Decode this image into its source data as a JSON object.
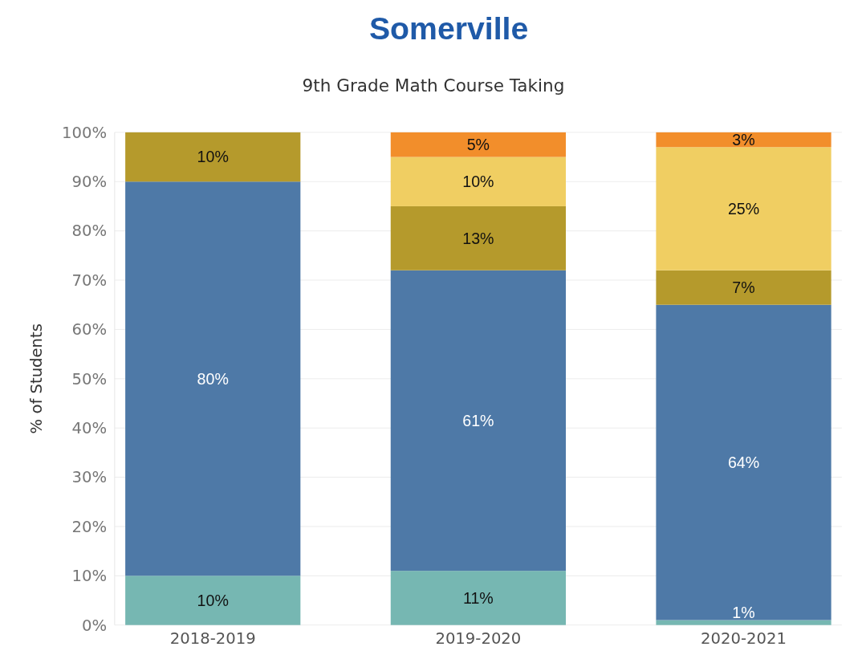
{
  "chart_data": {
    "type": "bar",
    "title": "Somerville",
    "subtitle": "9th Grade Math Course Taking",
    "ylabel": "% of Students",
    "categories": [
      "2018-2019",
      "2019-2020",
      "2020-2021"
    ],
    "stacked": true,
    "grid": "y",
    "ylim": [
      0,
      100
    ],
    "yticks": [
      {
        "value": 0,
        "label": "0%"
      },
      {
        "value": 10,
        "label": "10%"
      },
      {
        "value": 20,
        "label": "20%"
      },
      {
        "value": 30,
        "label": "30%"
      },
      {
        "value": 40,
        "label": "40%"
      },
      {
        "value": 50,
        "label": "50%"
      },
      {
        "value": 60,
        "label": "60%"
      },
      {
        "value": 70,
        "label": "70%"
      },
      {
        "value": 80,
        "label": "80%"
      },
      {
        "value": 90,
        "label": "90%"
      },
      {
        "value": 100,
        "label": "100%"
      }
    ],
    "series": [
      {
        "color": "#76b7b2",
        "values": [
          10,
          11,
          1
        ],
        "value_labels": [
          "10%",
          "11%",
          "1%"
        ]
      },
      {
        "color": "#4e79a7",
        "values": [
          80,
          61,
          64
        ],
        "value_labels": [
          "80%",
          "61%",
          "64%"
        ]
      },
      {
        "color": "#b59a2c",
        "values": [
          10,
          13,
          7
        ],
        "value_labels": [
          "10%",
          "13%",
          "7%"
        ]
      },
      {
        "color": "#f0ce62",
        "values": [
          null,
          10,
          25
        ],
        "value_labels": [
          null,
          "10%",
          "25%"
        ]
      },
      {
        "color": "#f28e2b",
        "values": [
          null,
          5,
          3
        ],
        "value_labels": [
          null,
          "5%",
          "3%"
        ]
      }
    ]
  }
}
